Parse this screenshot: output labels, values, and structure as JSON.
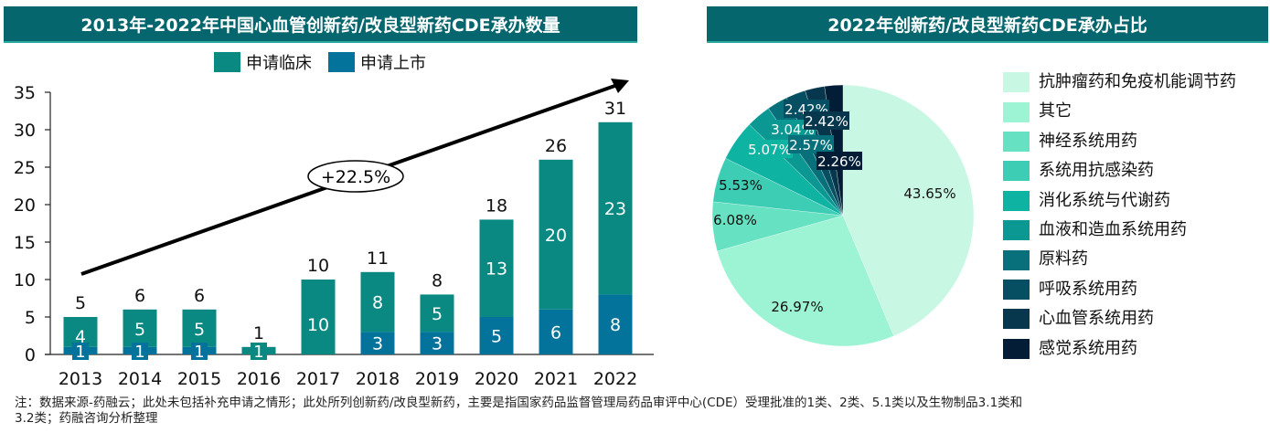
{
  "left_panel": {
    "title": "2013年-2022年中国心血管创新药/改良型新药CDE承办数量",
    "legend": [
      {
        "label": "申请临床",
        "color": "#0a8882"
      },
      {
        "label": "申请上市",
        "color": "#04739c"
      }
    ],
    "growth_annotation": "+22.5%"
  },
  "right_panel": {
    "title": "2022年创新药/改良型新药CDE承办占比"
  },
  "footnote": {
    "line1": "注：数据来源-药融云；此处未包括补充申请之情形；此处所列创新药/改良型新药，主要是指国家药品监督管理局药品审评中心(CDE）受理批准的1类、2类、5.1类以及生物制品3.1类和",
    "line2": "3.2类；药融咨询分析整理"
  },
  "chart_data": [
    {
      "type": "bar",
      "stacked": true,
      "title": "2013年-2022年中国心血管创新药/改良型新药CDE承办数量",
      "categories": [
        "2013",
        "2014",
        "2015",
        "2016",
        "2017",
        "2018",
        "2019",
        "2020",
        "2021",
        "2022"
      ],
      "series": [
        {
          "name": "申请上市",
          "color": "#04739c",
          "values": [
            1,
            1,
            1,
            0,
            0,
            3,
            3,
            5,
            6,
            8
          ]
        },
        {
          "name": "申请临床",
          "color": "#0a8882",
          "values": [
            4,
            5,
            5,
            1,
            10,
            8,
            5,
            13,
            20,
            23
          ]
        }
      ],
      "totals": [
        5,
        6,
        6,
        1,
        10,
        11,
        8,
        18,
        26,
        31
      ],
      "segment_labels": {
        "申请上市": [
          "1",
          "1",
          "1",
          "",
          "",
          "3",
          "3",
          "5",
          "6",
          "8"
        ],
        "申请临床": [
          "4",
          "5",
          "5",
          "1",
          "10",
          "8",
          "5",
          "13",
          "20",
          "23"
        ]
      },
      "ylim": [
        0,
        35
      ],
      "yticks": [
        0,
        5,
        10,
        15,
        20,
        25,
        30,
        35
      ],
      "xlabel": "",
      "ylabel": "",
      "legend_position": "top-center",
      "annotation": {
        "text": "+22.5%",
        "kind": "trend-arrow"
      }
    },
    {
      "type": "pie",
      "title": "2022年创新药/改良型新药CDE承办占比",
      "legend_position": "right",
      "slices": [
        {
          "label": "抗肿瘤药和免疫机能调节药",
          "value": 43.65,
          "color": "#c8f7e4",
          "text": "43.65%",
          "text_color": "#111"
        },
        {
          "label": "其它",
          "value": 26.97,
          "color": "#9cf4d5",
          "text": "26.97%",
          "text_color": "#111"
        },
        {
          "label": "神经系统用药",
          "value": 6.08,
          "color": "#66e2c2",
          "text": "6.08%",
          "text_color": "#111"
        },
        {
          "label": "系统用抗感染药",
          "value": 5.53,
          "color": "#3dcdb4",
          "text": "5.53%",
          "text_color": "#111"
        },
        {
          "label": "消化系统与代谢药",
          "value": 5.07,
          "color": "#0fb3a2",
          "text": "5.07%",
          "text_color": "#fff"
        },
        {
          "label": "血液和造血系统用药",
          "value": 3.04,
          "color": "#0b9893",
          "text": "3.04%",
          "text_color": "#fff"
        },
        {
          "label": "原料药",
          "value": 2.57,
          "color": "#08707a",
          "text": "2.57%",
          "text_color": "#fff"
        },
        {
          "label": "呼吸系统用药",
          "value": 2.42,
          "color": "#064f62",
          "text": "2.42%",
          "text_color": "#fff"
        },
        {
          "label": "心血管系统用药",
          "value": 2.42,
          "color": "#06374d",
          "text": "2.42%",
          "text_color": "#fff"
        },
        {
          "label": "感觉系统用药",
          "value": 2.26,
          "color": "#031d36",
          "text": "2.26%",
          "text_color": "#fff"
        }
      ]
    }
  ]
}
